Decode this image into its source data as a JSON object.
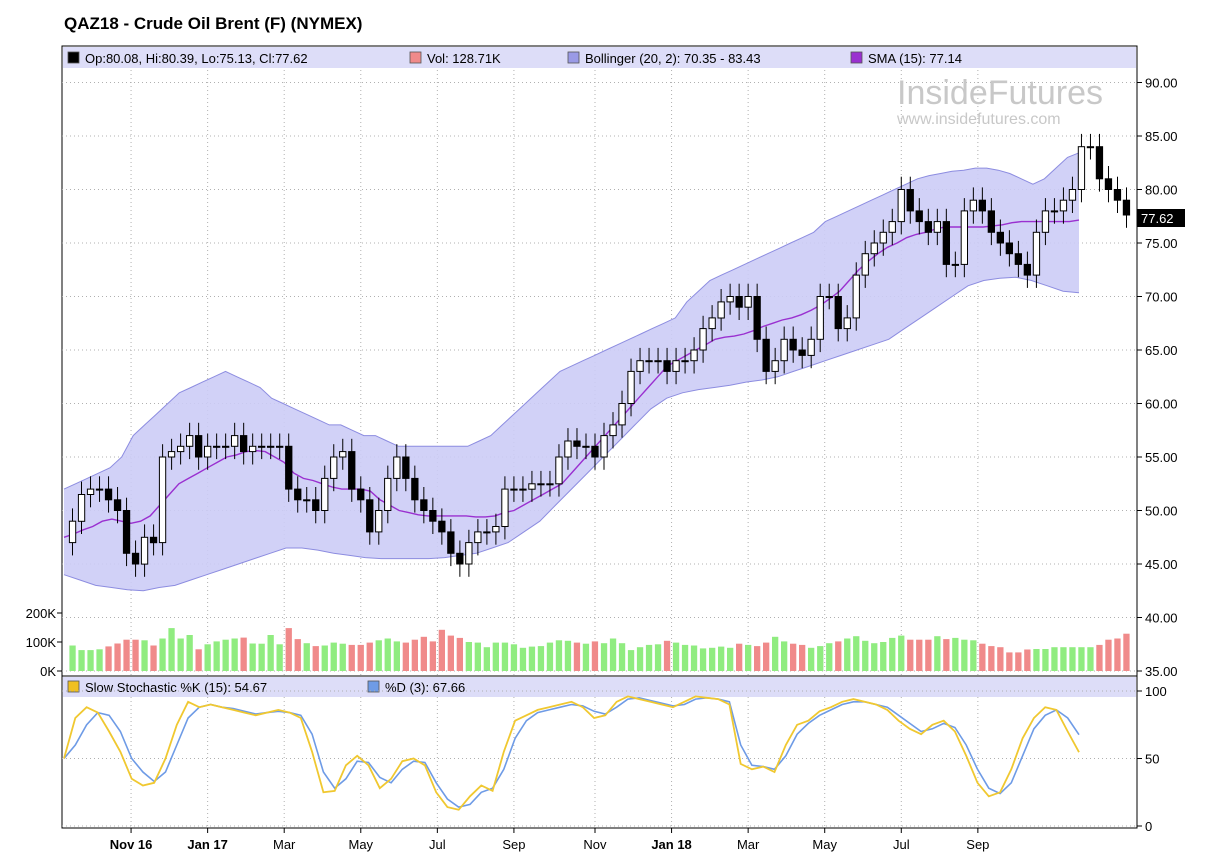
{
  "title": "QAZ18 - Crude Oil Brent (F) (NYMEX)",
  "watermark": {
    "brand": "InsideFutures",
    "url": "www.insidefutures.com"
  },
  "legend_main": [
    {
      "label": "Op:80.08, Hi:80.39, Lo:75.13, Cl:77.62",
      "color": "#000000"
    },
    {
      "label": "Vol: 128.71K",
      "color": "#f08a8a"
    },
    {
      "label": "Bollinger (20, 2): 70.35 - 83.43",
      "color": "#9a9ae6"
    },
    {
      "label": "SMA (15): 77.14",
      "color": "#9a30d0"
    }
  ],
  "legend_stoch": [
    {
      "label": "Slow Stochastic %K (15): 54.67",
      "color": "#f0c020"
    },
    {
      "label": "%D (3): 67.66",
      "color": "#6e9be6"
    }
  ],
  "last_price_label": "77.62",
  "colors": {
    "band_fill": "#ccccf6",
    "band_edge": "#8c8ce0",
    "sma": "#9a30d0",
    "vol_up": "#90ec80",
    "vol_down": "#f08a8a",
    "stoch_k": "#f0c830",
    "stoch_d": "#6e9be6",
    "legend_bg": "#ddddf8",
    "grid": "#b0b0b0"
  },
  "chart_data": {
    "type": "candlestick",
    "price_axis": {
      "ticks": [
        "90.00",
        "85.00",
        "80.00",
        "75.00",
        "70.00",
        "65.00",
        "60.00",
        "55.00",
        "50.00",
        "45.00",
        "40.00",
        "35.00"
      ],
      "range": [
        35,
        92.5
      ]
    },
    "volume_axis": {
      "ticks": [
        "200K",
        "100K",
        "0K"
      ],
      "range": [
        0,
        220000
      ]
    },
    "stoch_axis": {
      "ticks": [
        "100",
        "50",
        "0"
      ],
      "range": [
        0,
        100
      ]
    },
    "x_labels": [
      {
        "label": "Nov 16",
        "bold": true,
        "week": 6.5
      },
      {
        "label": "Jan 17",
        "bold": true,
        "week": 15
      },
      {
        "label": "Mar",
        "bold": false,
        "week": 23.5
      },
      {
        "label": "May",
        "bold": false,
        "week": 32
      },
      {
        "label": "Jul",
        "bold": false,
        "week": 40.5
      },
      {
        "label": "Sep",
        "bold": false,
        "week": 49
      },
      {
        "label": "Nov",
        "bold": false,
        "week": 58
      },
      {
        "label": "Jan 18",
        "bold": true,
        "week": 66.5
      },
      {
        "label": "Mar",
        "bold": false,
        "week": 75
      },
      {
        "label": "May",
        "bold": false,
        "week": 83.5
      },
      {
        "label": "Jul",
        "bold": false,
        "week": 92
      },
      {
        "label": "Sep",
        "bold": false,
        "week": 100.5
      }
    ],
    "close": [
      49,
      51.5,
      52,
      52,
      51,
      50,
      46,
      45,
      47.5,
      47,
      55,
      55.5,
      56,
      57,
      55,
      56,
      56,
      56,
      57,
      55.5,
      56,
      56,
      56,
      56,
      52,
      51,
      51,
      50,
      53,
      55,
      55.5,
      52,
      51,
      48,
      50,
      53,
      55,
      53,
      51,
      50,
      49,
      48,
      46,
      45,
      47,
      48,
      48,
      48.5,
      52,
      52,
      52,
      52.5,
      52.5,
      52.5,
      55,
      56.5,
      56,
      56,
      55,
      57,
      58,
      60,
      63,
      64,
      64,
      64,
      63,
      64,
      64,
      65,
      67,
      68,
      69.5,
      70,
      69,
      70,
      66,
      63,
      64,
      66,
      65,
      64.5,
      66,
      70,
      70,
      67,
      68,
      72,
      74,
      75,
      76,
      77,
      80,
      78,
      77,
      76,
      77,
      73,
      73,
      78,
      79,
      78,
      76,
      75,
      74,
      73,
      72,
      76,
      78,
      78,
      79,
      80,
      84,
      84,
      81,
      80,
      79,
      77.62
    ],
    "sma": [
      47.5,
      47.8,
      48.2,
      48.5,
      49,
      49.2,
      49,
      48.8,
      49,
      49.5,
      50.5,
      51.5,
      52.5,
      53,
      53.5,
      54,
      54.5,
      55,
      55.2,
      55.5,
      55.6,
      55.5,
      55,
      54.5,
      53.5,
      53,
      52.8,
      52.5,
      52.2,
      52,
      52,
      52,
      51.8,
      51,
      50.5,
      50,
      49.8,
      49.6,
      49.5,
      49.5,
      49.5,
      49.5,
      49.5,
      49.4,
      49.4,
      49.5,
      49.8,
      50,
      50.5,
      51,
      51.5,
      52,
      52.5,
      53.5,
      54.5,
      55.5,
      56.5,
      57.5,
      58.5,
      59.5,
      60.5,
      61.5,
      62.5,
      63.5,
      64,
      64.5,
      65,
      65.5,
      66,
      66.2,
      66.3,
      66.5,
      66.8,
      67.2,
      67.5,
      67.8,
      68,
      68.3,
      68.7,
      69.2,
      69.8,
      70.5,
      71.5,
      72.5,
      73.3,
      74,
      74.6,
      75,
      75.5,
      75.8,
      76,
      76.3,
      76.5,
      76.5,
      76.5,
      76.5,
      76.5,
      76.6,
      76.7,
      76.9,
      77,
      77,
      77,
      77,
      77,
      77,
      77.14
    ],
    "bb_upper": [
      52,
      52.5,
      53,
      53.5,
      54,
      55,
      57,
      58,
      59,
      60,
      61,
      61.5,
      62,
      62.5,
      63,
      62.5,
      62,
      61.5,
      60.5,
      60,
      59.5,
      59,
      58.5,
      58,
      58,
      57.5,
      57,
      57,
      56.5,
      56,
      56,
      56,
      56,
      56,
      56,
      56,
      56.5,
      57,
      58,
      59,
      60,
      61,
      62,
      63,
      63.5,
      64,
      64.5,
      65,
      65.5,
      66,
      66.5,
      67,
      67.5,
      68,
      69.5,
      70.5,
      71.5,
      72,
      72.5,
      73,
      73.5,
      74,
      74.5,
      75,
      75.5,
      76,
      77,
      77.5,
      78,
      78.5,
      79,
      79.5,
      80,
      80.5,
      81,
      81.3,
      81.5,
      81.7,
      81.8,
      82,
      82,
      81.8,
      81.5,
      81,
      80.5,
      81,
      82,
      83,
      83.43
    ],
    "bb_lower": [
      44,
      43.5,
      43,
      42.8,
      42.6,
      42.5,
      42.8,
      43,
      43.5,
      44,
      44.5,
      45,
      45.5,
      46,
      46.5,
      46.5,
      46.3,
      46,
      45.8,
      45.6,
      45.5,
      45.5,
      45.5,
      45.5,
      45.6,
      45.8,
      46,
      46.5,
      47,
      48,
      49,
      50.5,
      52,
      53.5,
      55,
      56.5,
      58,
      59.5,
      60.5,
      61,
      61.3,
      61.5,
      61.7,
      62,
      62.2,
      62.5,
      63,
      63.5,
      64,
      64.5,
      65,
      65.5,
      66,
      67,
      68,
      69,
      70,
      71,
      71.5,
      71.7,
      71.8,
      71.5,
      71,
      70.5,
      70.35
    ],
    "volume": [
      88,
      72,
      72,
      75,
      85,
      95,
      108,
      108,
      106,
      88,
      112,
      148,
      112,
      124,
      75,
      92,
      102,
      108,
      112,
      115,
      95,
      94,
      124,
      92,
      148,
      110,
      96,
      86,
      88,
      98,
      94,
      90,
      90,
      98,
      106,
      112,
      102,
      98,
      108,
      118,
      102,
      142,
      122,
      114,
      100,
      98,
      82,
      98,
      98,
      92,
      80,
      84,
      86,
      98,
      106,
      104,
      98,
      94,
      102,
      96,
      112,
      96,
      72,
      82,
      90,
      92,
      104,
      98,
      90,
      88,
      78,
      80,
      84,
      80,
      94,
      90,
      86,
      98,
      118,
      102,
      94,
      90,
      80,
      86,
      96,
      102,
      112,
      120,
      104,
      96,
      100,
      114,
      122,
      108,
      108,
      108,
      120,
      110,
      114,
      108,
      106,
      94,
      86,
      82,
      64,
      64,
      74,
      76,
      76,
      82,
      82,
      82,
      82,
      82,
      90,
      108,
      112,
      128.71
    ],
    "stoch_k": [
      50,
      80,
      88,
      84,
      70,
      55,
      35,
      30,
      32,
      50,
      75,
      92,
      88,
      90,
      88,
      86,
      84,
      82,
      84,
      86,
      84,
      80,
      55,
      25,
      26,
      45,
      52,
      45,
      28,
      35,
      48,
      50,
      45,
      25,
      14,
      12,
      22,
      30,
      26,
      55,
      78,
      82,
      86,
      88,
      90,
      92,
      88,
      80,
      82,
      92,
      96,
      94,
      92,
      90,
      88,
      92,
      96,
      95,
      94,
      90,
      46,
      42,
      44,
      40,
      60,
      75,
      78,
      85,
      88,
      92,
      94,
      92,
      90,
      86,
      78,
      72,
      68,
      75,
      78,
      70,
      52,
      32,
      22,
      25,
      42,
      65,
      80,
      88,
      86,
      70,
      54.67
    ],
    "stoch_d": [
      50,
      60,
      75,
      84,
      82,
      70,
      50,
      40,
      33,
      40,
      60,
      80,
      88,
      90,
      88,
      87,
      85,
      83,
      84,
      85,
      84,
      82,
      68,
      40,
      28,
      35,
      48,
      47,
      36,
      32,
      42,
      48,
      47,
      32,
      20,
      14,
      16,
      25,
      28,
      42,
      65,
      78,
      84,
      86,
      88,
      90,
      89,
      85,
      83,
      88,
      94,
      95,
      93,
      91,
      89,
      90,
      94,
      95,
      94,
      92,
      60,
      45,
      44,
      42,
      52,
      68,
      76,
      82,
      86,
      90,
      92,
      92,
      90,
      88,
      82,
      76,
      70,
      72,
      76,
      73,
      60,
      42,
      28,
      24,
      32,
      52,
      72,
      82,
      86,
      80,
      67.66
    ]
  }
}
